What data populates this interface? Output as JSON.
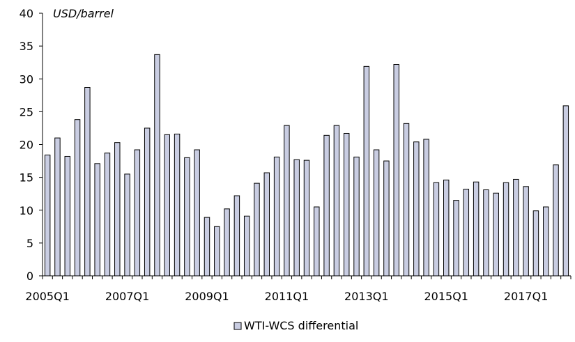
{
  "chart_data": {
    "type": "bar",
    "ylabel": "USD/barrel",
    "ylim": [
      0,
      40
    ],
    "yticks": [
      "0",
      "5",
      "10",
      "15",
      "20",
      "25",
      "30",
      "35",
      "40"
    ],
    "xtick_labels": [
      {
        "index": 0,
        "label": "2005Q1"
      },
      {
        "index": 8,
        "label": "2007Q1"
      },
      {
        "index": 16,
        "label": "2009Q1"
      },
      {
        "index": 24,
        "label": "2011Q1"
      },
      {
        "index": 32,
        "label": "2013Q1"
      },
      {
        "index": 40,
        "label": "2015Q1"
      },
      {
        "index": 48,
        "label": "2017Q1"
      }
    ],
    "grid": false,
    "legend_position": "bottom",
    "series": [
      {
        "name": "WTI-WCS differential",
        "color": "#c9cde2",
        "values": [
          18.4,
          21.0,
          18.2,
          23.8,
          28.7,
          17.1,
          18.7,
          20.3,
          15.5,
          19.2,
          22.5,
          33.7,
          21.5,
          21.6,
          18.0,
          19.2,
          8.9,
          7.5,
          10.2,
          12.2,
          9.1,
          14.1,
          15.7,
          18.1,
          22.9,
          17.7,
          17.6,
          10.5,
          21.4,
          22.9,
          21.7,
          18.1,
          31.9,
          19.2,
          17.5,
          32.2,
          23.2,
          20.4,
          20.8,
          14.2,
          14.6,
          11.5,
          13.2,
          14.3,
          13.1,
          12.6,
          14.2,
          14.7,
          13.6,
          9.9,
          10.5,
          16.9,
          25.9
        ]
      }
    ]
  }
}
